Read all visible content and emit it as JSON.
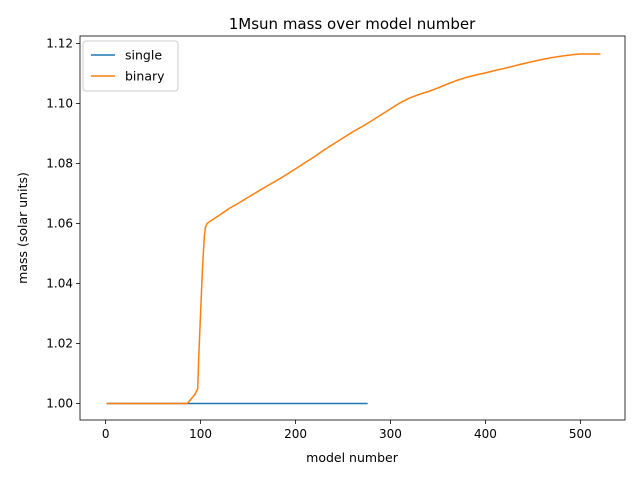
{
  "chart_data": {
    "type": "line",
    "title": "1Msun mass over model number",
    "xlabel": "model number",
    "ylabel": "mass (solar units)",
    "xlim": [
      -27,
      547
    ],
    "ylim": [
      0.9945,
      1.1225
    ],
    "xticks": [
      0,
      100,
      200,
      300,
      400,
      500
    ],
    "xtick_labels": [
      "0",
      "100",
      "200",
      "300",
      "400",
      "500"
    ],
    "yticks": [
      1.0,
      1.02,
      1.04,
      1.06,
      1.08,
      1.1,
      1.12
    ],
    "ytick_labels": [
      "1.00",
      "1.02",
      "1.04",
      "1.06",
      "1.08",
      "1.10",
      "1.12"
    ],
    "grid": false,
    "legend_position": "top-left",
    "series": [
      {
        "name": "single",
        "color": "#1f77b4",
        "x": [
          1,
          276
        ],
        "y": [
          1.0,
          1.0
        ]
      },
      {
        "name": "binary",
        "color": "#ff7f0e",
        "x": [
          1,
          86,
          90,
          94,
          97,
          98,
          100,
          102,
          104,
          105,
          106,
          107,
          110,
          120,
          130,
          140,
          150,
          160,
          170,
          180,
          190,
          200,
          210,
          220,
          230,
          240,
          250,
          260,
          270,
          280,
          290,
          300,
          310,
          320,
          330,
          340,
          350,
          360,
          370,
          380,
          390,
          400,
          410,
          420,
          430,
          440,
          450,
          460,
          470,
          480,
          490,
          500,
          510,
          521
        ],
        "y": [
          1.0,
          1.0,
          1.0015,
          1.003,
          1.005,
          1.015,
          1.03,
          1.045,
          1.056,
          1.0585,
          1.0595,
          1.06,
          1.0607,
          1.0628,
          1.065,
          1.0668,
          1.0687,
          1.0706,
          1.0725,
          1.0743,
          1.0762,
          1.0782,
          1.0803,
          1.0823,
          1.0845,
          1.0865,
          1.0885,
          1.0905,
          1.0923,
          1.0942,
          1.0962,
          1.0982,
          1.1002,
          1.1018,
          1.103,
          1.104,
          1.1052,
          1.1065,
          1.1077,
          1.1087,
          1.1095,
          1.1102,
          1.111,
          1.1117,
          1.1125,
          1.1133,
          1.114,
          1.1147,
          1.1153,
          1.1158,
          1.1162,
          1.1165,
          1.1165,
          1.1165
        ]
      }
    ]
  }
}
